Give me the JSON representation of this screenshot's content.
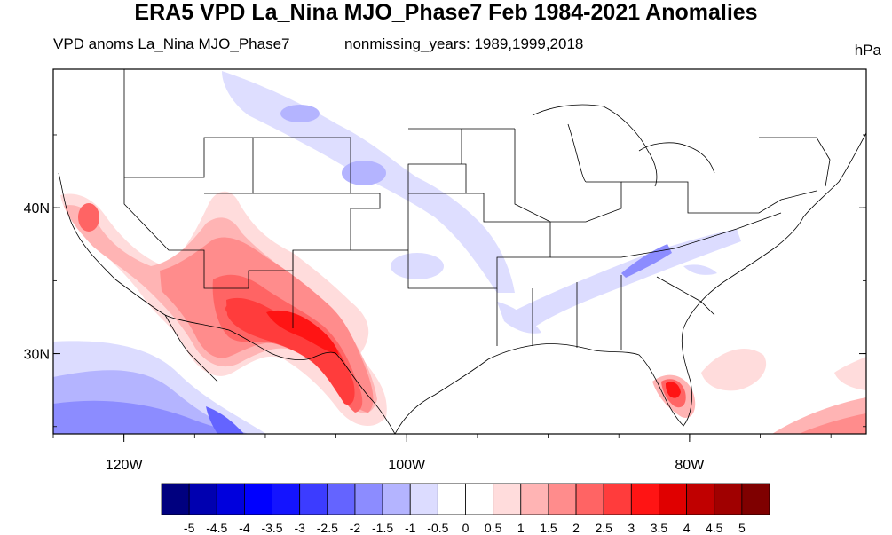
{
  "title": "ERA5 VPD La_Nina MJO_Phase7 Feb 1984-2021 Anomalies",
  "subtitle_left": "VPD anoms La_Nina MJO_Phase7",
  "subtitle_center": "nonmissing_years: 1989,1999,2018",
  "units": "hPa",
  "map": {
    "projection": "lat-lon",
    "lon_range": [
      -125,
      -67.5
    ],
    "lat_range": [
      24.5,
      49.5
    ],
    "lat_ticks": [
      {
        "value": 40,
        "label": "40N"
      },
      {
        "value": 30,
        "label": "30N"
      }
    ],
    "lon_ticks": [
      {
        "value": -120,
        "label": "120W"
      },
      {
        "value": -100,
        "label": "100W"
      },
      {
        "value": -80,
        "label": "80W"
      }
    ],
    "field": "VPD anomaly",
    "features": [
      {
        "name": "southwest-positive-anomaly",
        "level": 3.5,
        "lon": -106,
        "lat": 31.5
      },
      {
        "name": "california-positive-anomaly",
        "level": 1.5,
        "lon": -122,
        "lat": 39.5
      },
      {
        "name": "south-florida-positive-anomaly",
        "level": 3.0,
        "lon": -81,
        "lat": 27
      },
      {
        "name": "pacific-negative-anomaly",
        "level": -2.0,
        "lon": -118,
        "lat": 25.5
      },
      {
        "name": "tennessee-negative-anomaly",
        "level": -1.5,
        "lon": -84.5,
        "lat": 36.2
      }
    ]
  },
  "colorbar": {
    "labels": [
      "-5",
      "-4.5",
      "-4",
      "-3.5",
      "-3",
      "-2.5",
      "-2",
      "-1.5",
      "-1",
      "-0.5",
      "0",
      "0.5",
      "1",
      "1.5",
      "2",
      "2.5",
      "3",
      "3.5",
      "4",
      "4.5",
      "5"
    ],
    "colors": [
      "#00007f",
      "#0000b0",
      "#0000dd",
      "#0000ff",
      "#1414ff",
      "#3c3cff",
      "#6464ff",
      "#8c8cff",
      "#b4b4ff",
      "#dcdcff",
      "#ffffff",
      "#ffffff",
      "#ffdcdc",
      "#ffb4b4",
      "#ff8c8c",
      "#ff6464",
      "#ff3c3c",
      "#ff1414",
      "#e00000",
      "#c00000",
      "#a00000",
      "#7f0000"
    ]
  }
}
